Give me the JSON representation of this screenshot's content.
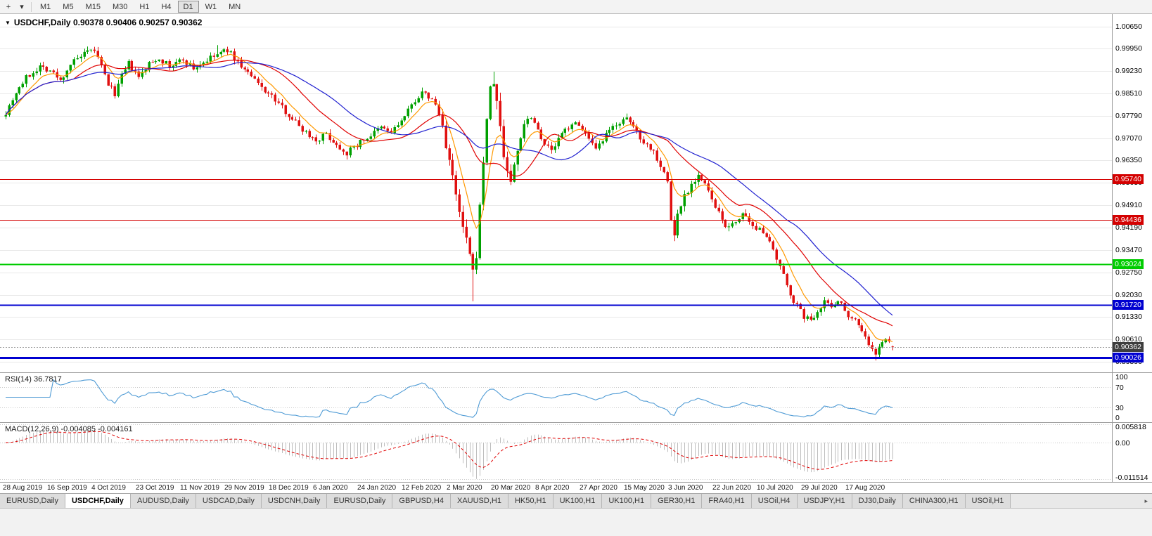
{
  "toolbar": {
    "crosshair_glyph": "+",
    "dropdown_glyph": "▾",
    "timeframes": [
      "M1",
      "M5",
      "M15",
      "M30",
      "H1",
      "H4",
      "D1",
      "W1",
      "MN"
    ],
    "active_timeframe": "D1"
  },
  "chart": {
    "symbol": "USDCHF",
    "period": "Daily",
    "menu_glyph": "▼",
    "title_full": "USDCHF,Daily 0.90378 0.90406 0.90257 0.90362",
    "open": "0.90378",
    "high": "0.90406",
    "low": "0.90257",
    "close": "0.90362"
  },
  "price_axis": {
    "ticks": [
      "1.00650",
      "0.99950",
      "0.99230",
      "0.98510",
      "0.97790",
      "0.97070",
      "0.96350",
      "0.95630",
      "0.94910",
      "0.94190",
      "0.93470",
      "0.92750",
      "0.92030",
      "0.91330",
      "0.90610",
      "0.89890"
    ]
  },
  "levels": [
    {
      "value": 0.9574,
      "label": "0.95740",
      "color": "#d40000",
      "thickness": 1
    },
    {
      "value": 0.94436,
      "label": "0.94436",
      "color": "#d40000",
      "thickness": 1
    },
    {
      "value": 0.93024,
      "label": "0.93024",
      "color": "#00cc00",
      "thickness": 2
    },
    {
      "value": 0.9172,
      "label": "0.91720",
      "color": "#0000d0",
      "thickness": 2
    },
    {
      "value": 0.90026,
      "label": "0.90026",
      "color": "#0000d0",
      "thickness": 3
    }
  ],
  "current_price": {
    "value": 0.90362,
    "label": "0.90362",
    "badge_bg": "#3d3d3d"
  },
  "time_axis": [
    "28 Aug 2019",
    "16 Sep 2019",
    "4 Oct 2019",
    "23 Oct 2019",
    "11 Nov 2019",
    "29 Nov 2019",
    "18 Dec 2019",
    "6 Jan 2020",
    "24 Jan 2020",
    "12 Feb 2020",
    "2 Mar 2020",
    "20 Mar 2020",
    "8 Apr 2020",
    "27 Apr 2020",
    "15 May 2020",
    "3 Jun 2020",
    "22 Jun 2020",
    "10 Jul 2020",
    "29 Jul 2020",
    "17 Aug 2020"
  ],
  "rsi": {
    "label": "RSI(14) 36.7817",
    "value": 36.7817,
    "period": 14,
    "axis": [
      "100",
      "70",
      "30",
      "0"
    ],
    "line_color": "#4f9bd5"
  },
  "macd": {
    "label": "MACD(12,26,9) -0.004085 -0.004161",
    "fast": 12,
    "slow": 26,
    "signal": 9,
    "values": [
      -0.004085,
      -0.004161
    ],
    "axis": [
      "0.005818",
      "0.00",
      "-0.011514"
    ],
    "histogram_color": "#bdbdbd",
    "signal_color": "#e00000"
  },
  "tabbar": {
    "tabs": [
      "EURUSD,Daily",
      "USDCHF,Daily",
      "AUDUSD,Daily",
      "USDCAD,Daily",
      "USDCNH,Daily",
      "EURUSD,Daily",
      "GBPUSD,H4",
      "XAUUSD,H1",
      "HK50,H1",
      "UK100,H1",
      "UK100,H1",
      "GER30,H1",
      "FRA40,H1",
      "USOil,H4",
      "USDJPY,H1",
      "DJ30,Daily",
      "CHINA300,H1",
      "USOil,H1"
    ],
    "active_index": 1,
    "scroll_right_glyph": "▸"
  },
  "chart_data": {
    "type": "candlestick",
    "symbol": "USDCHF",
    "timeframe": "D1",
    "bars": 261,
    "bars_per_label": 13,
    "y_domain": [
      0.8955,
      1.0105
    ],
    "macd_range": [
      -0.0125,
      0.0065
    ],
    "seed": 7,
    "base_volatility": 0.0023,
    "volatility_zones": [
      [
        128,
        150,
        0.005
      ],
      [
        193,
        200,
        0.0035
      ],
      [
        201,
        214,
        0.0026
      ],
      [
        225,
        240,
        0.0023
      ],
      [
        249,
        260,
        0.0018
      ]
    ],
    "wick_marks": [
      [
        62,
        1,
        1.0005
      ],
      [
        100,
        -1,
        0.9638
      ],
      [
        137,
        -1,
        0.9183
      ],
      [
        143,
        1,
        0.992
      ],
      [
        255,
        -1,
        0.8993
      ]
    ],
    "last_ohlc": {
      "open": 0.90378,
      "high": 0.90406,
      "low": 0.90257,
      "close": 0.90362
    },
    "up_color": "#00a000",
    "down_color": "#e01010",
    "grid_color": "#e9e9e9",
    "moving_averages": [
      {
        "method": "ema",
        "period": 8,
        "color": "#ff9900"
      },
      {
        "method": "sma",
        "period": 21,
        "color": "#e00000"
      },
      {
        "method": "sma",
        "period": 35,
        "color": "#2020d0"
      }
    ],
    "close_anchors": [
      [
        0,
        0.979
      ],
      [
        3,
        0.9855
      ],
      [
        6,
        0.99
      ],
      [
        10,
        0.9938
      ],
      [
        13,
        0.9925
      ],
      [
        16,
        0.989
      ],
      [
        19,
        0.9945
      ],
      [
        23,
        0.9975
      ],
      [
        26,
        0.999
      ],
      [
        28,
        0.9935
      ],
      [
        30,
        0.988
      ],
      [
        32,
        0.985
      ],
      [
        34,
        0.9905
      ],
      [
        36,
        0.9945
      ],
      [
        39,
        0.99
      ],
      [
        42,
        0.9945
      ],
      [
        45,
        0.9965
      ],
      [
        48,
        0.9935
      ],
      [
        52,
        0.996
      ],
      [
        55,
        0.993
      ],
      [
        58,
        0.995
      ],
      [
        62,
        0.9975
      ],
      [
        65,
        0.999
      ],
      [
        68,
        0.995
      ],
      [
        71,
        0.9915
      ],
      [
        74,
        0.988
      ],
      [
        78,
        0.984
      ],
      [
        81,
        0.9805
      ],
      [
        84,
        0.977
      ],
      [
        87,
        0.9735
      ],
      [
        91,
        0.97
      ],
      [
        94,
        0.972
      ],
      [
        97,
        0.9685
      ],
      [
        100,
        0.966
      ],
      [
        104,
        0.9695
      ],
      [
        107,
        0.9715
      ],
      [
        110,
        0.974
      ],
      [
        113,
        0.9725
      ],
      [
        117,
        0.9775
      ],
      [
        120,
        0.983
      ],
      [
        122,
        0.985
      ],
      [
        124,
        0.984
      ],
      [
        126,
        0.9815
      ],
      [
        128,
        0.9745
      ],
      [
        130,
        0.9635
      ],
      [
        132,
        0.9515
      ],
      [
        134,
        0.9415
      ],
      [
        136,
        0.933
      ],
      [
        137,
        0.9265
      ],
      [
        138,
        0.934
      ],
      [
        139,
        0.948
      ],
      [
        140,
        0.9635
      ],
      [
        141,
        0.9775
      ],
      [
        142,
        0.9855
      ],
      [
        143,
        0.989
      ],
      [
        145,
        0.9745
      ],
      [
        146,
        0.965
      ],
      [
        148,
        0.9565
      ],
      [
        150,
        0.967
      ],
      [
        152,
        0.9755
      ],
      [
        154,
        0.978
      ],
      [
        156,
        0.9735
      ],
      [
        158,
        0.969
      ],
      [
        160,
        0.9665
      ],
      [
        163,
        0.972
      ],
      [
        166,
        0.9755
      ],
      [
        169,
        0.974
      ],
      [
        171,
        0.97
      ],
      [
        173,
        0.9665
      ],
      [
        176,
        0.9715
      ],
      [
        179,
        0.9755
      ],
      [
        182,
        0.9765
      ],
      [
        184,
        0.9745
      ],
      [
        186,
        0.971
      ],
      [
        188,
        0.9685
      ],
      [
        190,
        0.9665
      ],
      [
        192,
        0.962
      ],
      [
        194,
        0.9565
      ],
      [
        195,
        0.9445
      ],
      [
        196,
        0.9395
      ],
      [
        197,
        0.946
      ],
      [
        199,
        0.9525
      ],
      [
        201,
        0.956
      ],
      [
        203,
        0.959
      ],
      [
        205,
        0.9555
      ],
      [
        207,
        0.951
      ],
      [
        208,
        0.948
      ],
      [
        210,
        0.9445
      ],
      [
        212,
        0.9415
      ],
      [
        214,
        0.944
      ],
      [
        216,
        0.9465
      ],
      [
        218,
        0.943
      ],
      [
        220,
        0.9405
      ],
      [
        221,
        0.9425
      ],
      [
        223,
        0.9395
      ],
      [
        225,
        0.934
      ],
      [
        227,
        0.929
      ],
      [
        229,
        0.9235
      ],
      [
        231,
        0.9185
      ],
      [
        233,
        0.915
      ],
      [
        234,
        0.9135
      ],
      [
        236,
        0.912
      ],
      [
        238,
        0.9155
      ],
      [
        240,
        0.9185
      ],
      [
        242,
        0.9165
      ],
      [
        244,
        0.919
      ],
      [
        246,
        0.9155
      ],
      [
        247,
        0.914
      ],
      [
        249,
        0.9125
      ],
      [
        251,
        0.909
      ],
      [
        253,
        0.9045
      ],
      [
        255,
        0.901
      ],
      [
        257,
        0.9055
      ],
      [
        258,
        0.9065
      ],
      [
        259,
        0.9048
      ],
      [
        260,
        0.90362
      ]
    ]
  }
}
